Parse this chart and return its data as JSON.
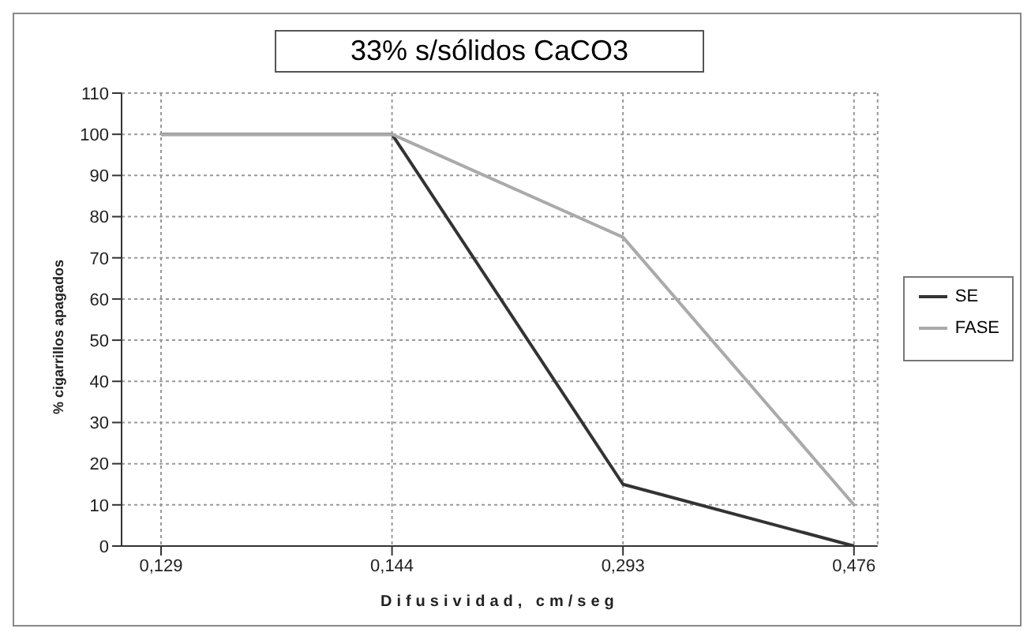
{
  "chart_data": {
    "type": "line",
    "title": "33% s/sólidos CaCO3",
    "xlabel": "Difusividad, cm/seg",
    "ylabel": "% cigarrillos apagados",
    "categories": [
      "0,129",
      "0,144",
      "0,293",
      "0,476"
    ],
    "series": [
      {
        "name": "SE",
        "color": "#333333",
        "values": [
          100,
          100,
          15,
          0
        ]
      },
      {
        "name": "FASE",
        "color": "#aaaaaa",
        "values": [
          100,
          100,
          75,
          10
        ]
      }
    ],
    "ylim": [
      0,
      110
    ],
    "yticks": [
      0,
      10,
      20,
      30,
      40,
      50,
      60,
      70,
      80,
      90,
      100,
      110
    ],
    "grid": true,
    "legend": "right",
    "marker": "none",
    "line_style": "solid"
  }
}
